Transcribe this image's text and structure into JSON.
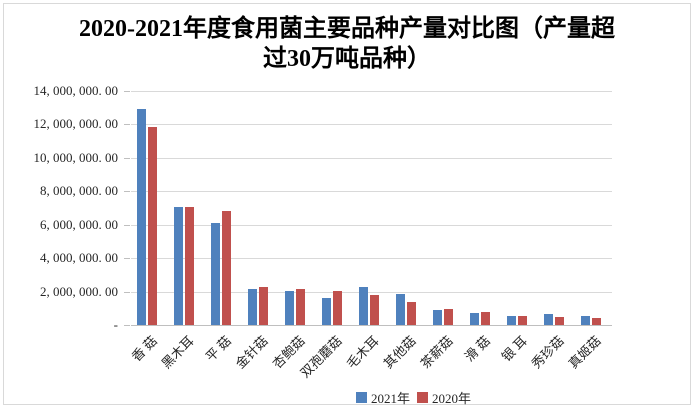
{
  "chart_data": {
    "type": "bar",
    "title": "2020-2021年度食用菌主要品种产量对比图（产量超过30万吨品种）",
    "categories": [
      "香 菇",
      "黑木耳",
      "平 菇",
      "金针菇",
      "杏鲍菇",
      "双孢蘑菇",
      "毛木耳",
      "其他菇",
      "茶薪菇",
      "滑 菇",
      "银 耳",
      "秀珍菇",
      "真姬菇"
    ],
    "series": [
      {
        "name": "2021年",
        "color": "#4F81BD",
        "values": [
          12900000,
          7080000,
          6100000,
          2180000,
          2060000,
          1600000,
          2270000,
          1840000,
          880000,
          700000,
          510000,
          680000,
          560000
        ]
      },
      {
        "name": "2020年",
        "color": "#C0504D",
        "values": [
          11850000,
          7060000,
          6810000,
          2300000,
          2140000,
          2020000,
          1820000,
          1400000,
          930000,
          760000,
          550000,
          500000,
          430000
        ]
      }
    ],
    "xlabel": "",
    "ylabel": "",
    "ylim": [
      0,
      14000000
    ],
    "y_tick_interval": 2000000,
    "y_tick_labels_top_to_bottom": [
      "14, 000, 000. 00",
      "12, 000, 000. 00",
      "10, 000, 000. 00",
      "8, 000, 000. 00",
      "6, 000, 000. 00",
      "4, 000, 000. 00",
      "2, 000, 000. 00",
      "-"
    ],
    "grid": "horizontal",
    "legend_position": "bottom-center"
  },
  "colors": {
    "series_2021": "#4F81BD",
    "series_2020": "#C0504D",
    "gridline": "#d9d9d9",
    "axis": "#bfbfbf",
    "frame_border": "#d9d9d9",
    "title_text": "#000000",
    "tick_text": "#262626"
  }
}
